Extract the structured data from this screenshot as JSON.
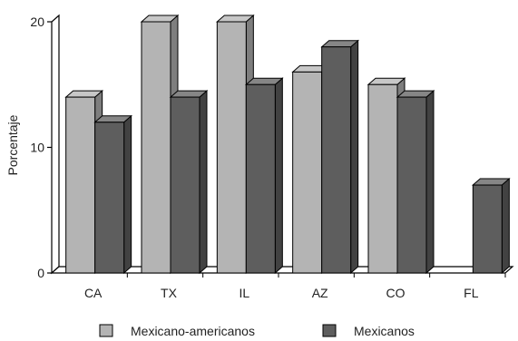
{
  "chart_data": {
    "type": "bar",
    "title": "",
    "xlabel": "",
    "ylabel": "Porcentaje",
    "categories": [
      "CA",
      "TX",
      "IL",
      "AZ",
      "CO",
      "FL"
    ],
    "series": [
      {
        "name": "Mexicano-americanos",
        "values": [
          14,
          20,
          20,
          16,
          15,
          0
        ],
        "color": "#b4b4b4"
      },
      {
        "name": "Mexicanos",
        "values": [
          12,
          14,
          15,
          18,
          14,
          7
        ],
        "color": "#5e5e5e"
      }
    ],
    "ylim": [
      0,
      20
    ],
    "yticks": [
      0,
      10,
      20
    ],
    "grid": false,
    "legend_position": "bottom",
    "style": "3d"
  }
}
